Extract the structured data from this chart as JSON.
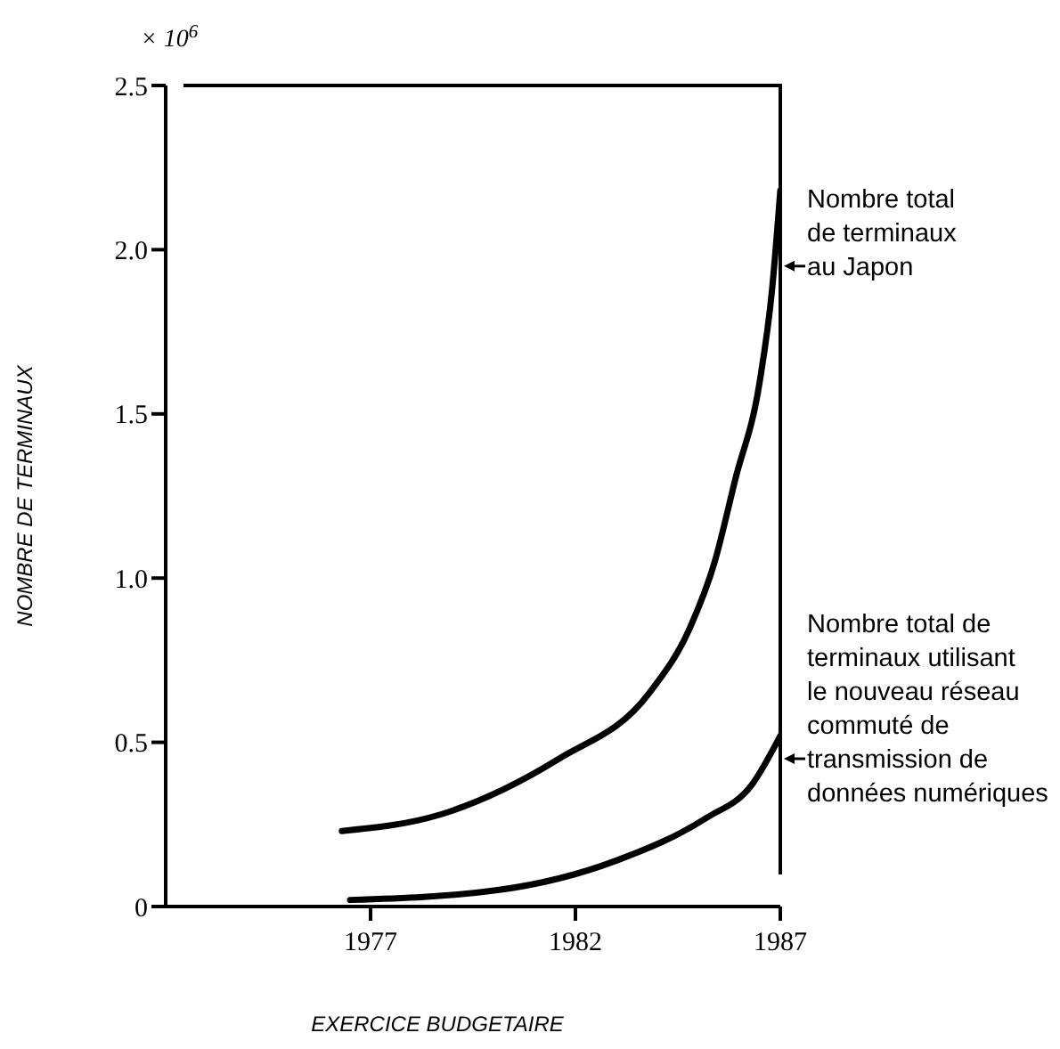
{
  "chart_data": {
    "type": "line",
    "xlabel": "EXERCICE BUDGETAIRE",
    "ylabel": "NOMBRE DE TERMINAUX",
    "xlim": [
      1972,
      1987
    ],
    "xticks": [
      1977,
      1982,
      1987
    ],
    "ylim": [
      0,
      2.5
    ],
    "yticks": [
      0,
      {
        "value": 0.5,
        "label": "0.5"
      },
      {
        "value": 1,
        "label": "1.0"
      },
      {
        "value": 1.5,
        "label": "1.5"
      },
      {
        "value": 2,
        "label": "2.0"
      },
      {
        "value": 2.5,
        "label": "2.5"
      }
    ],
    "marker": "none",
    "line_style": "solid",
    "series": [
      {
        "color": "#000000",
        "x": [
          1976.3,
          1978.7,
          1981.6,
          1983.8,
          1984.8,
          1985.4,
          1985.9,
          1986.5,
          1986.8,
          1987
        ],
        "values": [
          0.23,
          0.28,
          0.45,
          0.65,
          0.85,
          1.05,
          1.3,
          1.6,
          1.88,
          2.18
        ]
      },
      {
        "color": "#000000",
        "x": [
          1976.5,
          1980.1,
          1983,
          1985.2,
          1986.3,
          1987
        ],
        "values": [
          0.02,
          0.05,
          0.14,
          0.27,
          0.37,
          0.52
        ]
      }
    ],
    "annotations": [
      "× 10$^{6}$",
      {
        "text": "Nombre total\nde terminaux\nau Japon",
        "x": 1987,
        "y": 1.95
      },
      {
        "text": "Nombre total de\nterminaux utilisant\nle nouveau réseau\ncommuté de\ntransmission de\ndonnées numériques",
        "x": 1987,
        "y": 0.45
      }
    ]
  }
}
